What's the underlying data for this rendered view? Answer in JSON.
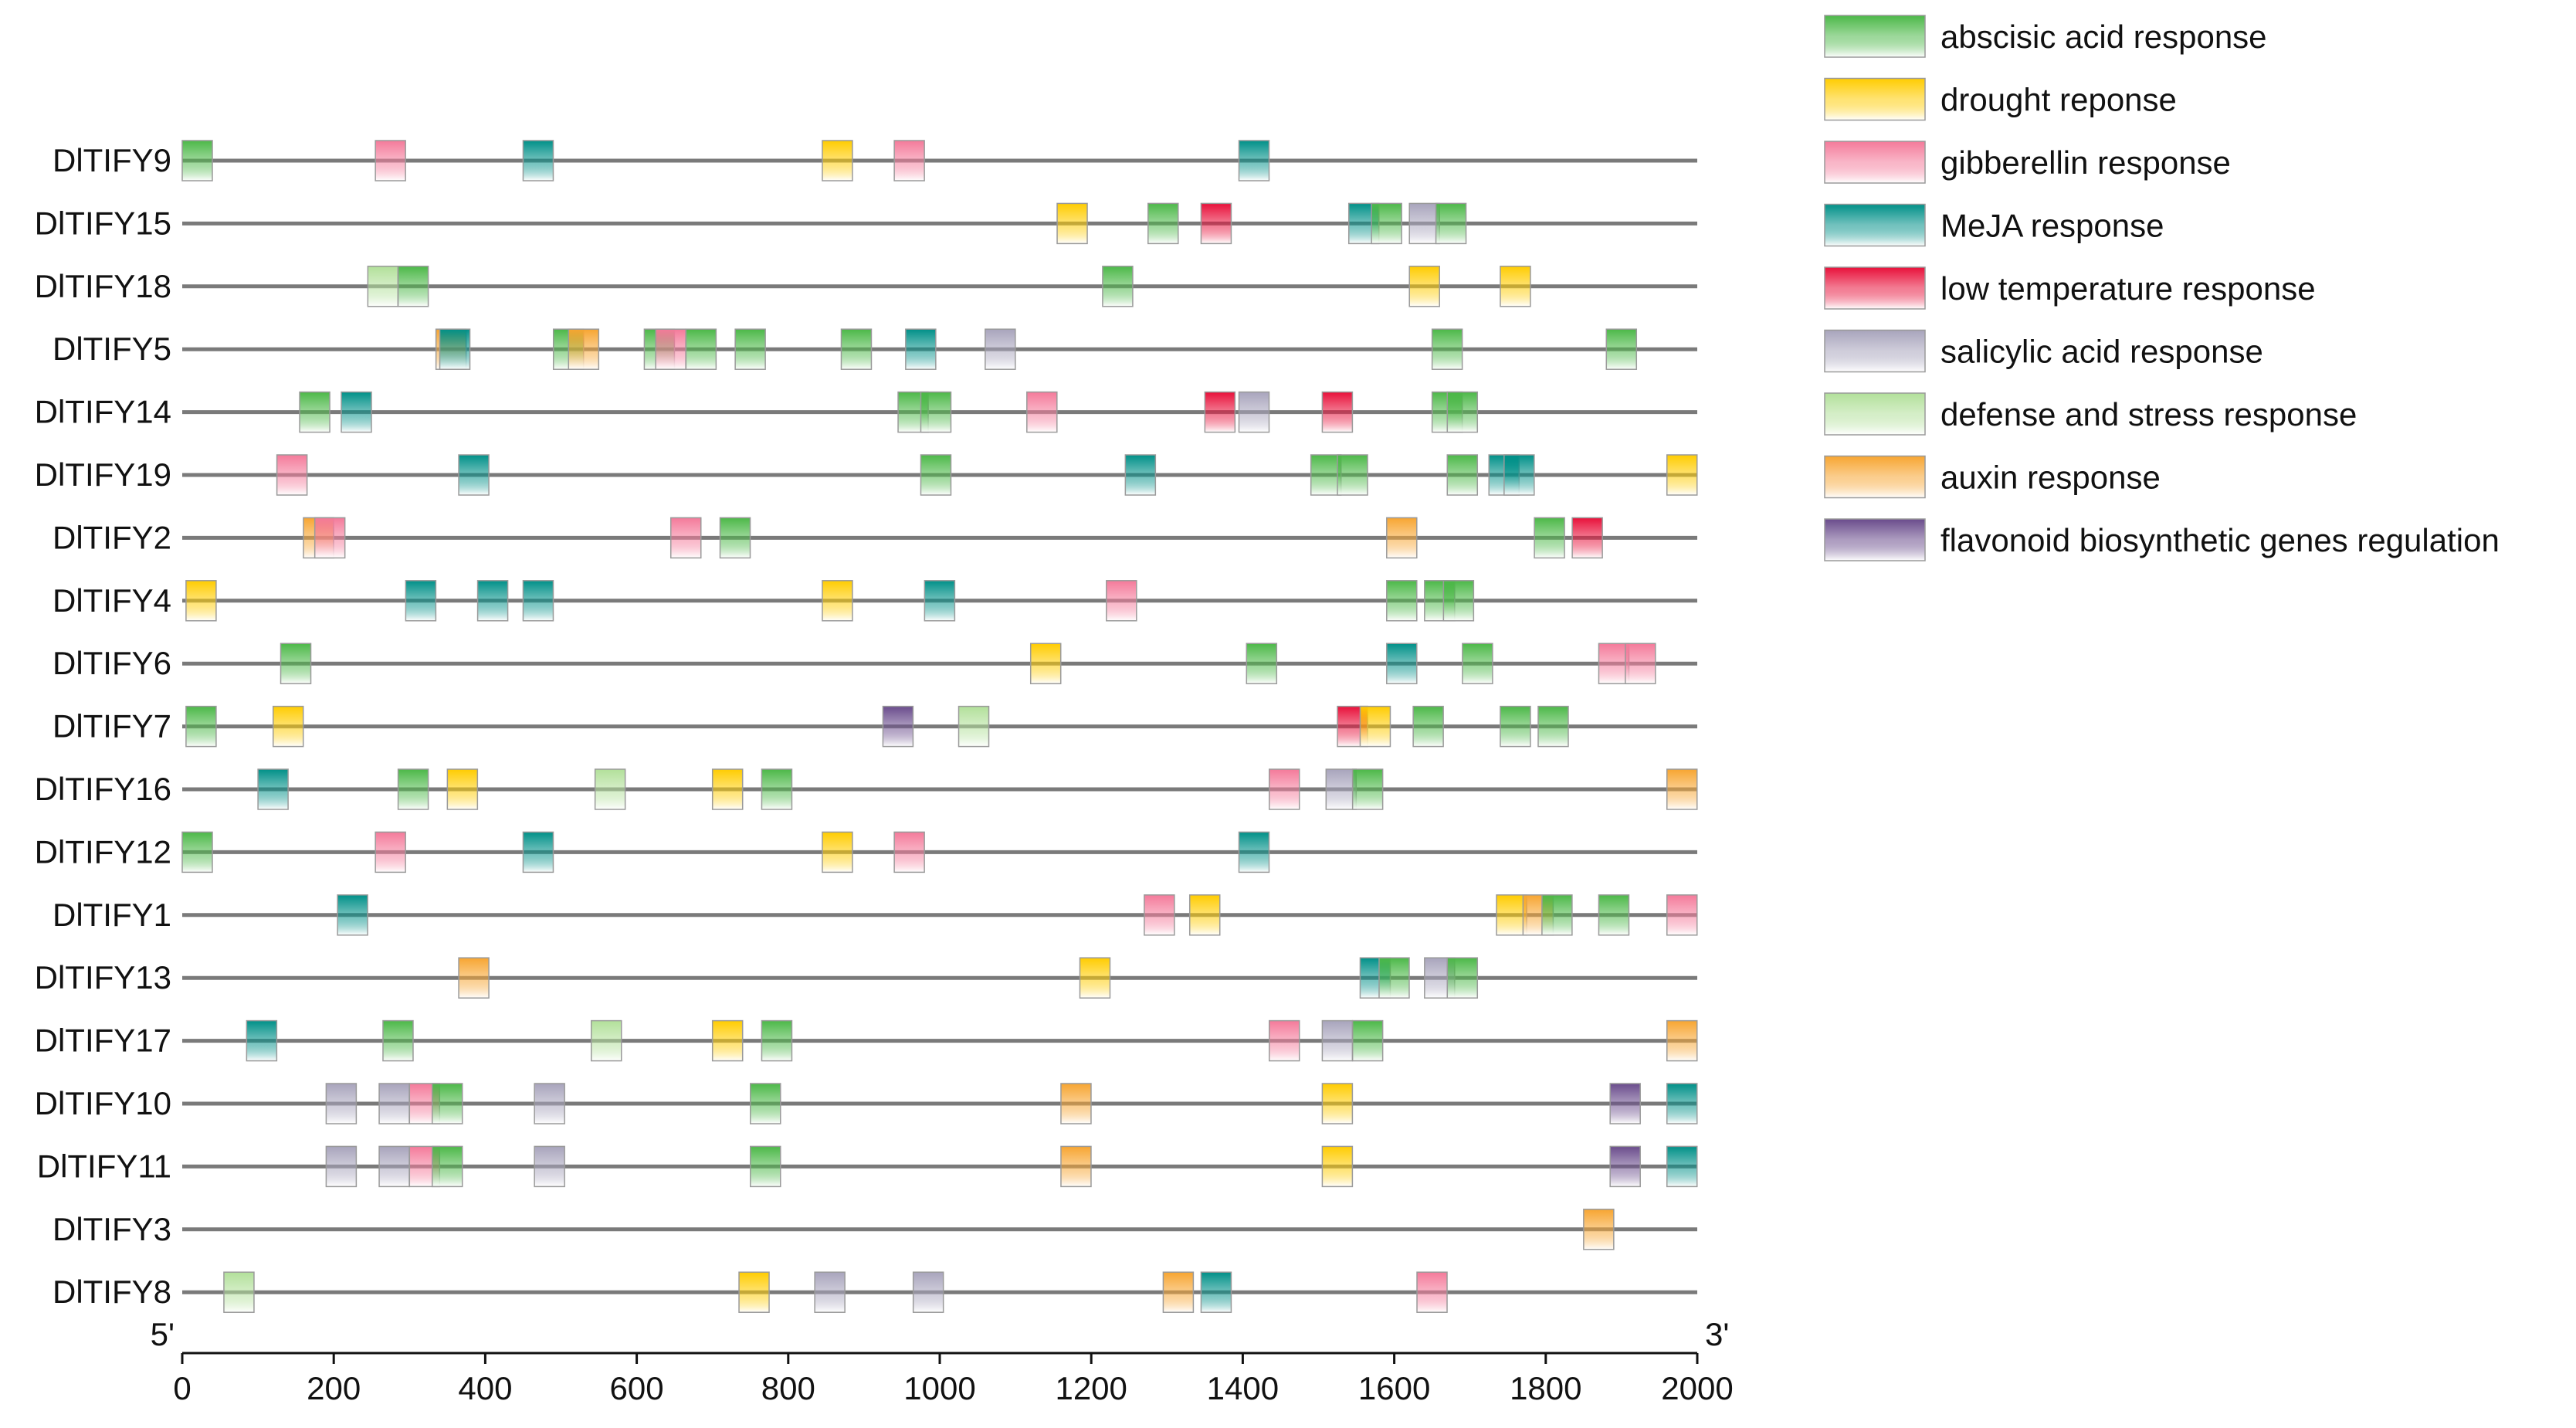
{
  "chart_data": {
    "type": "promoter-element-map",
    "xlim": [
      0,
      2000
    ],
    "x_ticks": [
      0,
      200,
      400,
      600,
      800,
      1000,
      1200,
      1400,
      1600,
      1800,
      2000
    ],
    "end_labels": {
      "left": "5'",
      "right": "3'"
    },
    "categories": [
      {
        "key": "aba",
        "name": "abscisic acid response",
        "color": "#4cb848"
      },
      {
        "key": "dr",
        "name": "drought reponse",
        "color": "#ffcc00"
      },
      {
        "key": "gib",
        "name": "gibberellin response",
        "color": "#f47a9a"
      },
      {
        "key": "meja",
        "name": "MeJA response",
        "color": "#009088"
      },
      {
        "key": "low",
        "name": "low temperature response",
        "color": "#e8103a"
      },
      {
        "key": "sal",
        "name": "salicylic acid response",
        "color": "#a8a4bc"
      },
      {
        "key": "def",
        "name": "defense and stress response",
        "color": "#b2e09a"
      },
      {
        "key": "aux",
        "name": "auxin response",
        "color": "#f7a531"
      },
      {
        "key": "fla",
        "name": "flavonoid biosynthetic genes regulation",
        "color": "#6a4c8c"
      }
    ],
    "genes": [
      {
        "name": "DlTIFY9",
        "elements": [
          [
            0,
            "aba"
          ],
          [
            255,
            "gib"
          ],
          [
            450,
            "meja"
          ],
          [
            845,
            "dr"
          ],
          [
            940,
            "gib"
          ],
          [
            1395,
            "meja"
          ]
        ]
      },
      {
        "name": "DlTIFY15",
        "elements": [
          [
            1155,
            "dr"
          ],
          [
            1275,
            "aba"
          ],
          [
            1345,
            "low"
          ],
          [
            1540,
            "meja"
          ],
          [
            1570,
            "aba"
          ],
          [
            1620,
            "sal"
          ],
          [
            1655,
            "aba"
          ]
        ]
      },
      {
        "name": "DlTIFY18",
        "elements": [
          [
            245,
            "def"
          ],
          [
            285,
            "aba"
          ],
          [
            1215,
            "aba"
          ],
          [
            1620,
            "dr"
          ],
          [
            1740,
            "dr"
          ]
        ]
      },
      {
        "name": "DlTIFY5",
        "elements": [
          [
            335,
            "aux"
          ],
          [
            340,
            "meja"
          ],
          [
            490,
            "aba"
          ],
          [
            510,
            "aux"
          ],
          [
            610,
            "aba"
          ],
          [
            625,
            "gib"
          ],
          [
            665,
            "aba"
          ],
          [
            730,
            "aba"
          ],
          [
            870,
            "aba"
          ],
          [
            955,
            "meja"
          ],
          [
            1060,
            "sal"
          ],
          [
            1650,
            "aba"
          ],
          [
            1880,
            "aba"
          ]
        ]
      },
      {
        "name": "DlTIFY14",
        "elements": [
          [
            155,
            "aba"
          ],
          [
            210,
            "meja"
          ],
          [
            945,
            "aba"
          ],
          [
            975,
            "aba"
          ],
          [
            1115,
            "gib"
          ],
          [
            1350,
            "low"
          ],
          [
            1395,
            "sal"
          ],
          [
            1505,
            "low"
          ],
          [
            1650,
            "aba"
          ],
          [
            1670,
            "aba"
          ]
        ]
      },
      {
        "name": "DlTIFY19",
        "elements": [
          [
            125,
            "gib"
          ],
          [
            365,
            "meja"
          ],
          [
            975,
            "aba"
          ],
          [
            1245,
            "meja"
          ],
          [
            1490,
            "aba"
          ],
          [
            1525,
            "aba"
          ],
          [
            1670,
            "aba"
          ],
          [
            1725,
            "meja"
          ],
          [
            1745,
            "meja"
          ],
          [
            1960,
            "dr"
          ]
        ]
      },
      {
        "name": "DlTIFY2",
        "elements": [
          [
            160,
            "aux"
          ],
          [
            175,
            "gib"
          ],
          [
            645,
            "gib"
          ],
          [
            710,
            "aba"
          ],
          [
            1590,
            "aux"
          ],
          [
            1785,
            "aba"
          ],
          [
            1835,
            "low"
          ]
        ]
      },
      {
        "name": "DlTIFY4",
        "elements": [
          [
            5,
            "dr"
          ],
          [
            295,
            "meja"
          ],
          [
            390,
            "meja"
          ],
          [
            450,
            "meja"
          ],
          [
            845,
            "dr"
          ],
          [
            980,
            "meja"
          ],
          [
            1220,
            "gib"
          ],
          [
            1590,
            "aba"
          ],
          [
            1640,
            "aba"
          ],
          [
            1665,
            "aba"
          ]
        ]
      },
      {
        "name": "DlTIFY6",
        "elements": [
          [
            130,
            "aba"
          ],
          [
            1120,
            "dr"
          ],
          [
            1405,
            "aba"
          ],
          [
            1590,
            "meja"
          ],
          [
            1690,
            "aba"
          ],
          [
            1870,
            "gib"
          ],
          [
            1905,
            "gib"
          ]
        ]
      },
      {
        "name": "DlTIFY7",
        "elements": [
          [
            5,
            "aba"
          ],
          [
            120,
            "dr"
          ],
          [
            925,
            "fla"
          ],
          [
            1025,
            "def"
          ],
          [
            1525,
            "low"
          ],
          [
            1555,
            "dr"
          ],
          [
            1625,
            "aba"
          ],
          [
            1740,
            "aba"
          ],
          [
            1790,
            "aba"
          ]
        ]
      },
      {
        "name": "DlTIFY16",
        "elements": [
          [
            100,
            "meja"
          ],
          [
            285,
            "aba"
          ],
          [
            350,
            "dr"
          ],
          [
            545,
            "def"
          ],
          [
            700,
            "dr"
          ],
          [
            765,
            "aba"
          ],
          [
            1435,
            "gib"
          ],
          [
            1510,
            "sal"
          ],
          [
            1545,
            "aba"
          ],
          [
            1960,
            "aux"
          ]
        ]
      },
      {
        "name": "DlTIFY12",
        "elements": [
          [
            0,
            "aba"
          ],
          [
            255,
            "gib"
          ],
          [
            450,
            "meja"
          ],
          [
            845,
            "dr"
          ],
          [
            940,
            "gib"
          ],
          [
            1395,
            "meja"
          ]
        ]
      },
      {
        "name": "DlTIFY1",
        "elements": [
          [
            205,
            "meja"
          ],
          [
            1270,
            "gib"
          ],
          [
            1330,
            "dr"
          ],
          [
            1735,
            "dr"
          ],
          [
            1770,
            "aux"
          ],
          [
            1795,
            "aba"
          ],
          [
            1870,
            "aba"
          ],
          [
            1960,
            "gib"
          ]
        ]
      },
      {
        "name": "DlTIFY13",
        "elements": [
          [
            365,
            "aux"
          ],
          [
            1185,
            "dr"
          ],
          [
            1555,
            "meja"
          ],
          [
            1580,
            "aba"
          ],
          [
            1640,
            "sal"
          ],
          [
            1670,
            "aba"
          ]
        ]
      },
      {
        "name": "DlTIFY17",
        "elements": [
          [
            85,
            "meja"
          ],
          [
            265,
            "aba"
          ],
          [
            540,
            "def"
          ],
          [
            700,
            "dr"
          ],
          [
            765,
            "aba"
          ],
          [
            1435,
            "gib"
          ],
          [
            1505,
            "sal"
          ],
          [
            1545,
            "aba"
          ],
          [
            1960,
            "aux"
          ]
        ]
      },
      {
        "name": "DlTIFY10",
        "elements": [
          [
            190,
            "sal"
          ],
          [
            260,
            "sal"
          ],
          [
            300,
            "gib"
          ],
          [
            330,
            "aba"
          ],
          [
            465,
            "sal"
          ],
          [
            750,
            "aba"
          ],
          [
            1160,
            "aux"
          ],
          [
            1505,
            "dr"
          ],
          [
            1885,
            "fla"
          ],
          [
            1960,
            "meja"
          ]
        ]
      },
      {
        "name": "DlTIFY11",
        "elements": [
          [
            190,
            "sal"
          ],
          [
            260,
            "sal"
          ],
          [
            300,
            "gib"
          ],
          [
            330,
            "aba"
          ],
          [
            465,
            "sal"
          ],
          [
            750,
            "aba"
          ],
          [
            1160,
            "aux"
          ],
          [
            1505,
            "dr"
          ],
          [
            1885,
            "fla"
          ],
          [
            1960,
            "meja"
          ]
        ]
      },
      {
        "name": "DlTIFY3",
        "elements": [
          [
            1850,
            "aux"
          ]
        ]
      },
      {
        "name": "DlTIFY8",
        "elements": [
          [
            55,
            "def"
          ],
          [
            735,
            "dr"
          ],
          [
            835,
            "sal"
          ],
          [
            965,
            "sal"
          ],
          [
            1295,
            "aux"
          ],
          [
            1345,
            "meja"
          ],
          [
            1630,
            "gib"
          ]
        ]
      }
    ]
  }
}
